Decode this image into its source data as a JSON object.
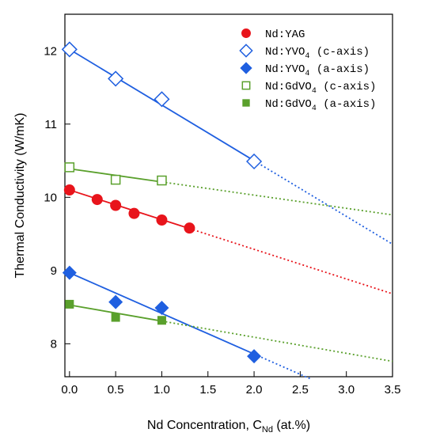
{
  "chart_data": {
    "type": "scatter",
    "xlabel": "Nd Concentration, C",
    "xlabel_sub": "Nd",
    "xlabel_unit": " (at.%)",
    "ylabel": "Thermal Conductivity (W/mK)",
    "xlim": [
      -0.05,
      3.5
    ],
    "ylim": [
      7.55,
      12.5
    ],
    "xticks": [
      0.0,
      0.5,
      1.0,
      1.5,
      2.0,
      2.5,
      3.0,
      3.5
    ],
    "xtick_labels": [
      "0.0",
      "0.5",
      "1.0",
      "1.5",
      "2.0",
      "2.5",
      "3.0",
      "3.5"
    ],
    "yticks": [
      8,
      9,
      10,
      11,
      12
    ],
    "ytick_labels": [
      "8",
      "9",
      "10",
      "11",
      "12"
    ],
    "grid": false,
    "legend_position": "top-right",
    "series": [
      {
        "name": "Nd:YAG",
        "name_sub": "",
        "name_suffix": "",
        "marker": "circle",
        "filled": true,
        "color": "#e8141b",
        "points": [
          [
            0.0,
            10.1
          ],
          [
            0.3,
            9.97
          ],
          [
            0.5,
            9.89
          ],
          [
            0.7,
            9.78
          ],
          [
            1.0,
            9.69
          ],
          [
            1.3,
            9.58
          ]
        ],
        "fit": {
          "intercept": 10.1,
          "slope": -0.405,
          "solid_to": 1.3,
          "dotted_to": 3.5
        }
      },
      {
        "name": "Nd:YVO",
        "name_sub": "4",
        "name_suffix": " (c-axis)",
        "marker": "diamond",
        "filled": false,
        "color": "#1f5fe0",
        "points": [
          [
            0.0,
            12.02
          ],
          [
            0.5,
            11.62
          ],
          [
            1.0,
            11.34
          ],
          [
            2.0,
            10.49
          ]
        ],
        "fit": {
          "intercept": 12.02,
          "slope": -0.76,
          "solid_to": 2.0,
          "dotted_to": 3.5
        }
      },
      {
        "name": "Nd:YVO",
        "name_sub": "4",
        "name_suffix": " (a-axis)",
        "marker": "diamond",
        "filled": true,
        "color": "#1f5fe0",
        "points": [
          [
            0.0,
            8.97
          ],
          [
            0.5,
            8.57
          ],
          [
            1.0,
            8.49
          ],
          [
            2.0,
            7.83
          ]
        ],
        "fit": {
          "intercept": 8.97,
          "slope": -0.555,
          "solid_to": 2.0,
          "dotted_to": 2.62
        }
      },
      {
        "name": "Nd:GdVO",
        "name_sub": "4",
        "name_suffix": " (c-axis)",
        "marker": "square",
        "filled": false,
        "color": "#5aa02c",
        "points": [
          [
            0.0,
            10.41
          ],
          [
            0.5,
            10.24
          ],
          [
            1.0,
            10.23
          ]
        ],
        "fit": {
          "intercept": 10.39,
          "slope": -0.18,
          "solid_to": 1.0,
          "dotted_to": 3.5
        }
      },
      {
        "name": "Nd:GdVO",
        "name_sub": "4",
        "name_suffix": " (a-axis)",
        "marker": "square",
        "filled": true,
        "color": "#5aa02c",
        "points": [
          [
            0.0,
            8.54
          ],
          [
            0.5,
            8.36
          ],
          [
            1.0,
            8.32
          ]
        ],
        "fit": {
          "intercept": 8.53,
          "slope": -0.22,
          "solid_to": 1.0,
          "dotted_to": 3.5
        }
      }
    ]
  }
}
